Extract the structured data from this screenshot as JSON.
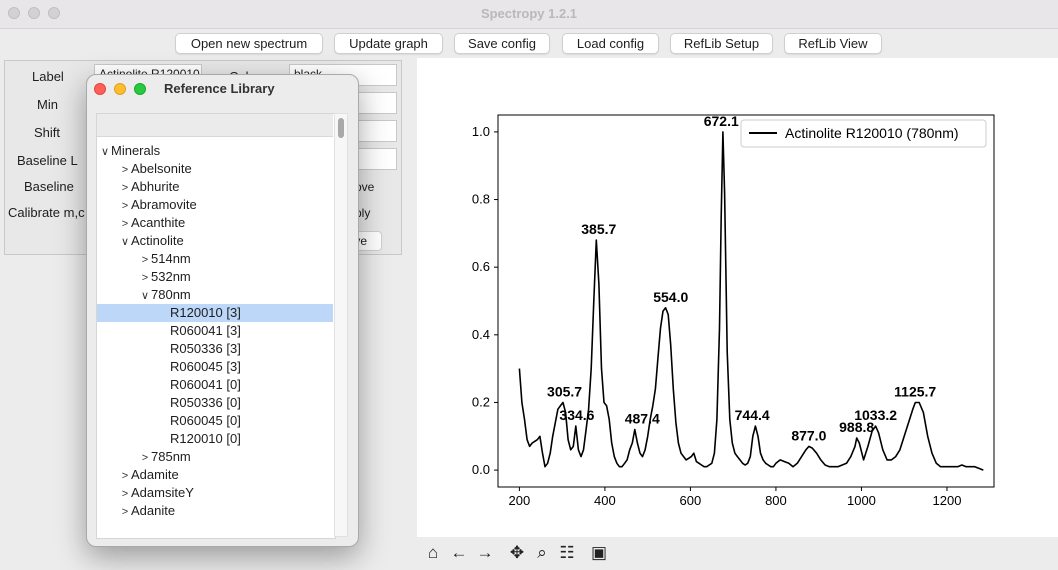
{
  "window": {
    "title": "Spectropy 1.2.1"
  },
  "toolbar": {
    "buttons": [
      {
        "label": "Open new spectrum"
      },
      {
        "label": "Update graph"
      },
      {
        "label": "Save config"
      },
      {
        "label": "Load config"
      },
      {
        "label": "RefLib Setup"
      },
      {
        "label": "RefLib View"
      }
    ]
  },
  "left_panel": {
    "labels": {
      "label": "Label",
      "min": "Min",
      "shift": "Shift",
      "baseline_l": "Baseline L",
      "baseline": "Baseline",
      "calibrate": "Calibrate m,c"
    },
    "label_value": "Actinolite R120010",
    "color_label": "Color",
    "color_value": "black",
    "remove_text": "ove",
    "apply_text": "ply",
    "save_text": "ve"
  },
  "dialog": {
    "title": "Reference Library",
    "tree": [
      {
        "label": "Minerals",
        "level": 0,
        "arrow": "v"
      },
      {
        "label": "Abelsonite",
        "level": 1,
        "arrow": ">"
      },
      {
        "label": "Abhurite",
        "level": 1,
        "arrow": ">"
      },
      {
        "label": "Abramovite",
        "level": 1,
        "arrow": ">"
      },
      {
        "label": "Acanthite",
        "level": 1,
        "arrow": ">"
      },
      {
        "label": "Actinolite",
        "level": 1,
        "arrow": "v"
      },
      {
        "label": "514nm",
        "level": 2,
        "arrow": ">"
      },
      {
        "label": "532nm",
        "level": 2,
        "arrow": ">"
      },
      {
        "label": "780nm",
        "level": 2,
        "arrow": "v"
      },
      {
        "label": "R120010 [3]",
        "level": 3,
        "arrow": "",
        "selected": true
      },
      {
        "label": "R060041 [3]",
        "level": 3,
        "arrow": ""
      },
      {
        "label": "R050336 [3]",
        "level": 3,
        "arrow": ""
      },
      {
        "label": "R060045 [3]",
        "level": 3,
        "arrow": ""
      },
      {
        "label": "R060041 [0]",
        "level": 3,
        "arrow": ""
      },
      {
        "label": "R050336 [0]",
        "level": 3,
        "arrow": ""
      },
      {
        "label": "R060045 [0]",
        "level": 3,
        "arrow": ""
      },
      {
        "label": "R120010 [0]",
        "level": 3,
        "arrow": ""
      },
      {
        "label": "785nm",
        "level": 2,
        "arrow": ">"
      },
      {
        "label": "Adamite",
        "level": 1,
        "arrow": ">"
      },
      {
        "label": "AdamsiteY",
        "level": 1,
        "arrow": ">"
      },
      {
        "label": "Adanite",
        "level": 1,
        "arrow": ">"
      }
    ]
  },
  "colors": {
    "line": "#000000",
    "selection": "#bcd7f7"
  },
  "chart_data": {
    "type": "line",
    "xlim": [
      150,
      1310
    ],
    "ylim": [
      -0.05,
      1.05
    ],
    "xticks": [
      200,
      400,
      600,
      800,
      1000,
      1200
    ],
    "yticks": [
      0.0,
      0.2,
      0.4,
      0.6,
      0.8,
      1.0
    ],
    "legend": "Actinolite R120010 (780nm)",
    "legend_position": "top-right",
    "series": [
      {
        "name": "Actinolite R120010 (780nm)",
        "x": [
          200,
          206,
          212,
          218,
          224,
          230,
          236,
          242,
          248,
          254,
          260,
          266,
          272,
          278,
          284,
          290,
          296,
          302,
          308,
          314,
          320,
          326,
          332,
          338,
          344,
          350,
          356,
          362,
          368,
          374,
          380,
          386,
          392,
          398,
          404,
          410,
          416,
          422,
          428,
          434,
          440,
          446,
          452,
          458,
          464,
          470,
          476,
          482,
          488,
          494,
          500,
          506,
          512,
          518,
          524,
          530,
          536,
          542,
          548,
          554,
          560,
          566,
          572,
          578,
          584,
          590,
          596,
          602,
          608,
          614,
          620,
          626,
          632,
          638,
          644,
          650,
          656,
          662,
          668,
          672,
          676,
          680,
          686,
          692,
          698,
          704,
          710,
          716,
          722,
          728,
          734,
          740,
          746,
          752,
          758,
          764,
          770,
          776,
          782,
          788,
          794,
          800,
          810,
          820,
          830,
          840,
          850,
          860,
          870,
          877,
          885,
          895,
          905,
          915,
          925,
          935,
          945,
          955,
          965,
          975,
          985,
          989,
          995,
          1005,
          1015,
          1025,
          1033,
          1040,
          1050,
          1060,
          1070,
          1080,
          1090,
          1100,
          1110,
          1120,
          1126,
          1135,
          1145,
          1155,
          1165,
          1175,
          1185,
          1195,
          1205,
          1215,
          1225,
          1235,
          1245,
          1255,
          1265,
          1275,
          1285
        ],
        "y": [
          0.3,
          0.2,
          0.15,
          0.09,
          0.07,
          0.08,
          0.085,
          0.09,
          0.1,
          0.05,
          0.01,
          0.02,
          0.05,
          0.1,
          0.14,
          0.18,
          0.19,
          0.2,
          0.17,
          0.09,
          0.06,
          0.07,
          0.13,
          0.06,
          0.04,
          0.06,
          0.12,
          0.18,
          0.3,
          0.5,
          0.68,
          0.55,
          0.3,
          0.2,
          0.19,
          0.15,
          0.08,
          0.04,
          0.02,
          0.01,
          0.01,
          0.02,
          0.03,
          0.06,
          0.08,
          0.12,
          0.08,
          0.05,
          0.04,
          0.06,
          0.1,
          0.15,
          0.19,
          0.24,
          0.33,
          0.42,
          0.47,
          0.48,
          0.46,
          0.37,
          0.24,
          0.14,
          0.08,
          0.05,
          0.04,
          0.03,
          0.035,
          0.04,
          0.05,
          0.025,
          0.02,
          0.015,
          0.01,
          0.01,
          0.015,
          0.02,
          0.05,
          0.15,
          0.42,
          0.75,
          1.0,
          0.82,
          0.35,
          0.15,
          0.08,
          0.05,
          0.04,
          0.03,
          0.02,
          0.015,
          0.02,
          0.04,
          0.1,
          0.13,
          0.1,
          0.05,
          0.03,
          0.02,
          0.015,
          0.01,
          0.01,
          0.02,
          0.03,
          0.025,
          0.02,
          0.01,
          0.02,
          0.04,
          0.06,
          0.07,
          0.065,
          0.05,
          0.03,
          0.015,
          0.01,
          0.01,
          0.01,
          0.015,
          0.02,
          0.04,
          0.07,
          0.095,
          0.08,
          0.03,
          0.07,
          0.115,
          0.13,
          0.11,
          0.06,
          0.03,
          0.03,
          0.04,
          0.06,
          0.1,
          0.14,
          0.18,
          0.2,
          0.2,
          0.17,
          0.1,
          0.05,
          0.02,
          0.01,
          0.01,
          0.01,
          0.01,
          0.01,
          0.015,
          0.01,
          0.01,
          0.01,
          0.005,
          0.0
        ],
        "annotations": [
          {
            "x": 305.7,
            "y": 0.2,
            "label": "305.7"
          },
          {
            "x": 334.6,
            "y": 0.13,
            "label": "334.6"
          },
          {
            "x": 385.7,
            "y": 0.68,
            "label": "385.7"
          },
          {
            "x": 487.4,
            "y": 0.12,
            "label": "487.4"
          },
          {
            "x": 554.0,
            "y": 0.48,
            "label": "554.0"
          },
          {
            "x": 672.1,
            "y": 1.0,
            "label": "672.1"
          },
          {
            "x": 744.4,
            "y": 0.13,
            "label": "744.4"
          },
          {
            "x": 877.0,
            "y": 0.07,
            "label": "877.0"
          },
          {
            "x": 988.8,
            "y": 0.095,
            "label": "988.8"
          },
          {
            "x": 1033.2,
            "y": 0.13,
            "label": "1033.2"
          },
          {
            "x": 1125.7,
            "y": 0.2,
            "label": "1125.7"
          }
        ]
      }
    ]
  }
}
